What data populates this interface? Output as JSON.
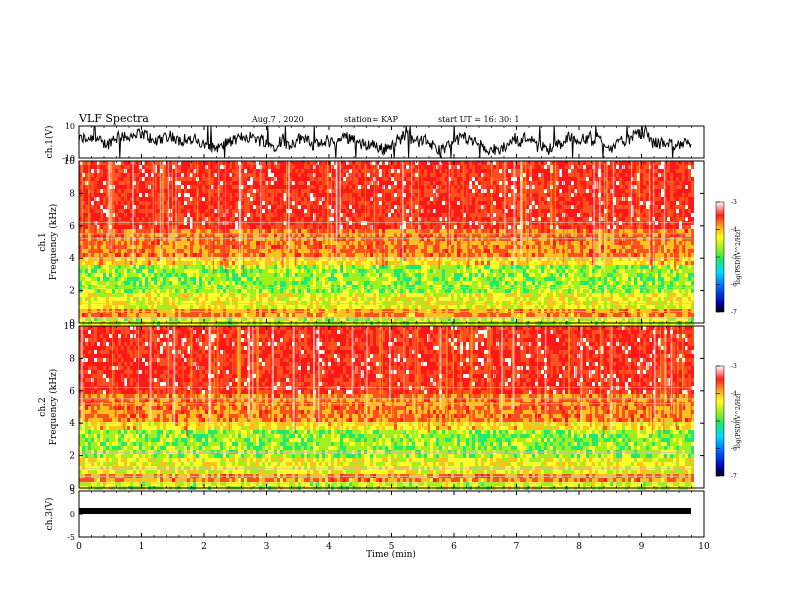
{
  "header": {
    "title": "VLF Spectra",
    "date": "Aug.7 , 2020",
    "station": "station= KAP",
    "start": "start UT = 16: 30: 1"
  },
  "chart_data": [
    {
      "type": "line",
      "panel": "ch1-waveform",
      "ylabel": "ch.1(V)",
      "yticks": [
        "10",
        "-10"
      ],
      "ylim": [
        -10,
        10
      ],
      "xlim": [
        0,
        10
      ],
      "description_values": "waveform oscillating approximately between -10 and 10 V over 0-9.8 min"
    },
    {
      "type": "heatmap",
      "panel": "ch1-spectrogram",
      "ylabel_line1": "ch.1",
      "ylabel_line2": "Frequency (kHz)",
      "yticks": [
        "0",
        "2",
        "4",
        "6",
        "8",
        "10"
      ],
      "ylim": [
        0,
        10
      ],
      "xlim": [
        0,
        10
      ],
      "data_end_min": 9.8,
      "colorbar": {
        "label": "log(PSD)(V^2/Hz)",
        "ticks": [
          "-3",
          "-4",
          "-5",
          "-6",
          "-7"
        ],
        "range": [
          -7,
          -3
        ]
      }
    },
    {
      "type": "heatmap",
      "panel": "ch2-spectrogram",
      "ylabel_line1": "ch.2",
      "ylabel_line2": "Frequency (kHz)",
      "yticks": [
        "0",
        "2",
        "4",
        "6",
        "8",
        "10"
      ],
      "ylim": [
        0,
        10
      ],
      "xlim": [
        0,
        10
      ],
      "data_end_min": 9.8,
      "colorbar": {
        "label": "log(PSD)(V^2/Hz)",
        "ticks": [
          "-3",
          "-4",
          "-5",
          "-6",
          "-7"
        ],
        "range": [
          -7,
          -3
        ]
      }
    },
    {
      "type": "line",
      "panel": "ch3-waveform",
      "ylabel": "ch.3(V)",
      "yticks": [
        "5",
        "0",
        "-5"
      ],
      "ylim": [
        -5,
        5
      ],
      "xlim": [
        0,
        10
      ],
      "level": -0.3,
      "xlabel": "Time (min)",
      "xticks": [
        "0",
        "1",
        "2",
        "3",
        "4",
        "5",
        "6",
        "7",
        "8",
        "9",
        "10"
      ]
    }
  ]
}
